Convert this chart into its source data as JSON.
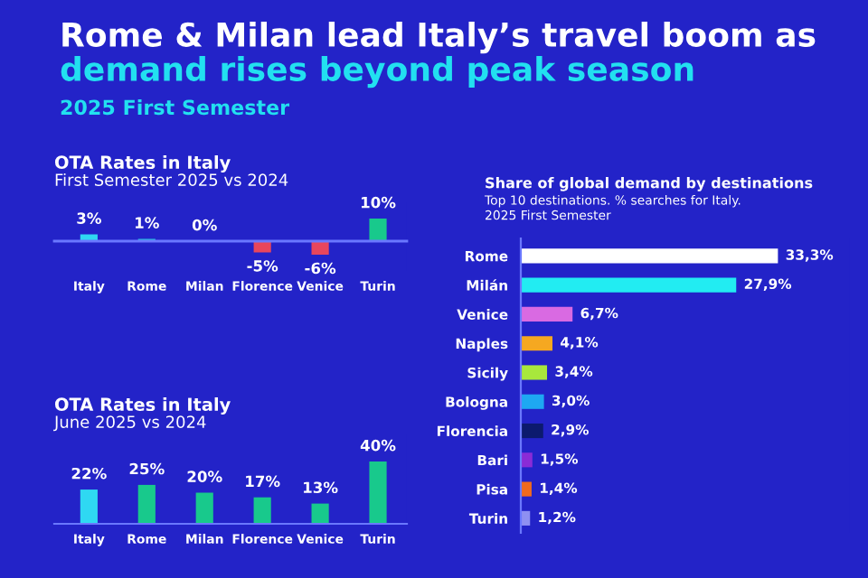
{
  "chart_data": [
    {
      "type": "bar",
      "title": "OTA Rates in Italy",
      "subtitle": "First Semester 2025 vs 2024",
      "annotations": [
        "Rome & Milan lead Italy’s travel boom as",
        "demand rises beyond peak season",
        "2025 First Semester"
      ],
      "categories": [
        "Italy",
        "Rome",
        "Milan",
        "Florence",
        "Venice",
        "Turin"
      ],
      "values": [
        3,
        1,
        0,
        -5,
        -6,
        10
      ],
      "colors": [
        "#2fd8f2",
        "#1fc8d8",
        "#1fc8d8",
        "#e8465c",
        "#e8465c",
        "#18c98c"
      ],
      "value_labels": [
        "3%",
        "1%",
        "0%",
        "-5%",
        "-6%",
        "10%"
      ],
      "ref_lines": [
        {
          "axis": "y",
          "value": 0,
          "color": "#6a78ff"
        }
      ],
      "tick_labels": "x",
      "grid": false,
      "legend": false
    },
    {
      "type": "bar",
      "title": "OTA Rates in Italy",
      "subtitle": "June 2025 vs 2024",
      "categories": [
        "Italy",
        "Rome",
        "Milan",
        "Florence",
        "Venice",
        "Turin"
      ],
      "values": [
        22,
        25,
        20,
        17,
        13,
        40
      ],
      "colors": [
        "#2fd8f2",
        "#18c98c",
        "#18c98c",
        "#18c98c",
        "#18c98c",
        "#18c98c"
      ],
      "value_labels": [
        "22%",
        "25%",
        "20%",
        "17%",
        "13%",
        "40%"
      ],
      "tick_labels": "x",
      "grid": false,
      "legend": false
    },
    {
      "type": "bar",
      "orientation": "horizontal",
      "title": "Share of global demand by destinations",
      "subtitle": "Top 10 destinations. % searches for Italy.\n2025 First Semester",
      "categories": [
        "Rome",
        "Milán",
        "Venice",
        "Naples",
        "Sicily",
        "Bologna",
        "Florencia",
        "Bari",
        "Pisa",
        "Turin"
      ],
      "values": [
        33.3,
        27.9,
        6.7,
        4.1,
        3.4,
        3.0,
        2.9,
        1.5,
        1.4,
        1.2
      ],
      "colors": [
        "#ffffff",
        "#22ecf2",
        "#d96ae2",
        "#f5a821",
        "#a8e83c",
        "#1ea8f2",
        "#0c1a6e",
        "#8a2bd6",
        "#f06a1e",
        "#8e90f2"
      ],
      "value_labels": [
        "33,3%",
        "27,9%",
        "6,7%",
        "4,1%",
        "3,4%",
        "3,0%",
        "2,9%",
        "1,5%",
        "1,4%",
        "1,2%"
      ],
      "tick_labels": "y",
      "grid": false,
      "legend": false
    }
  ]
}
